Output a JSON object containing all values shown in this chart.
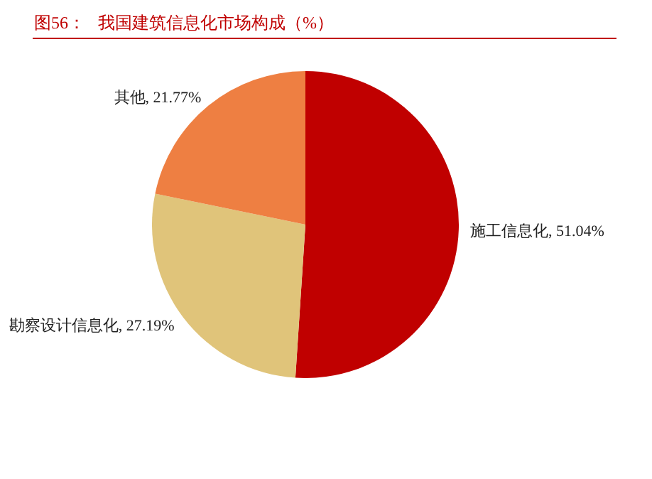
{
  "chart_data": {
    "type": "pie",
    "title": "图56：   我国建筑信息化市场构成（%）",
    "categories": [
      "施工信息化",
      "勘察设计信息化",
      "其他"
    ],
    "values": [
      51.04,
      27.19,
      21.77
    ],
    "value_labels": [
      "51.04%",
      "27.19%",
      "21.77%"
    ],
    "colors": [
      "#c00000",
      "#e0c47a",
      "#ee7f42"
    ],
    "legend": false
  }
}
